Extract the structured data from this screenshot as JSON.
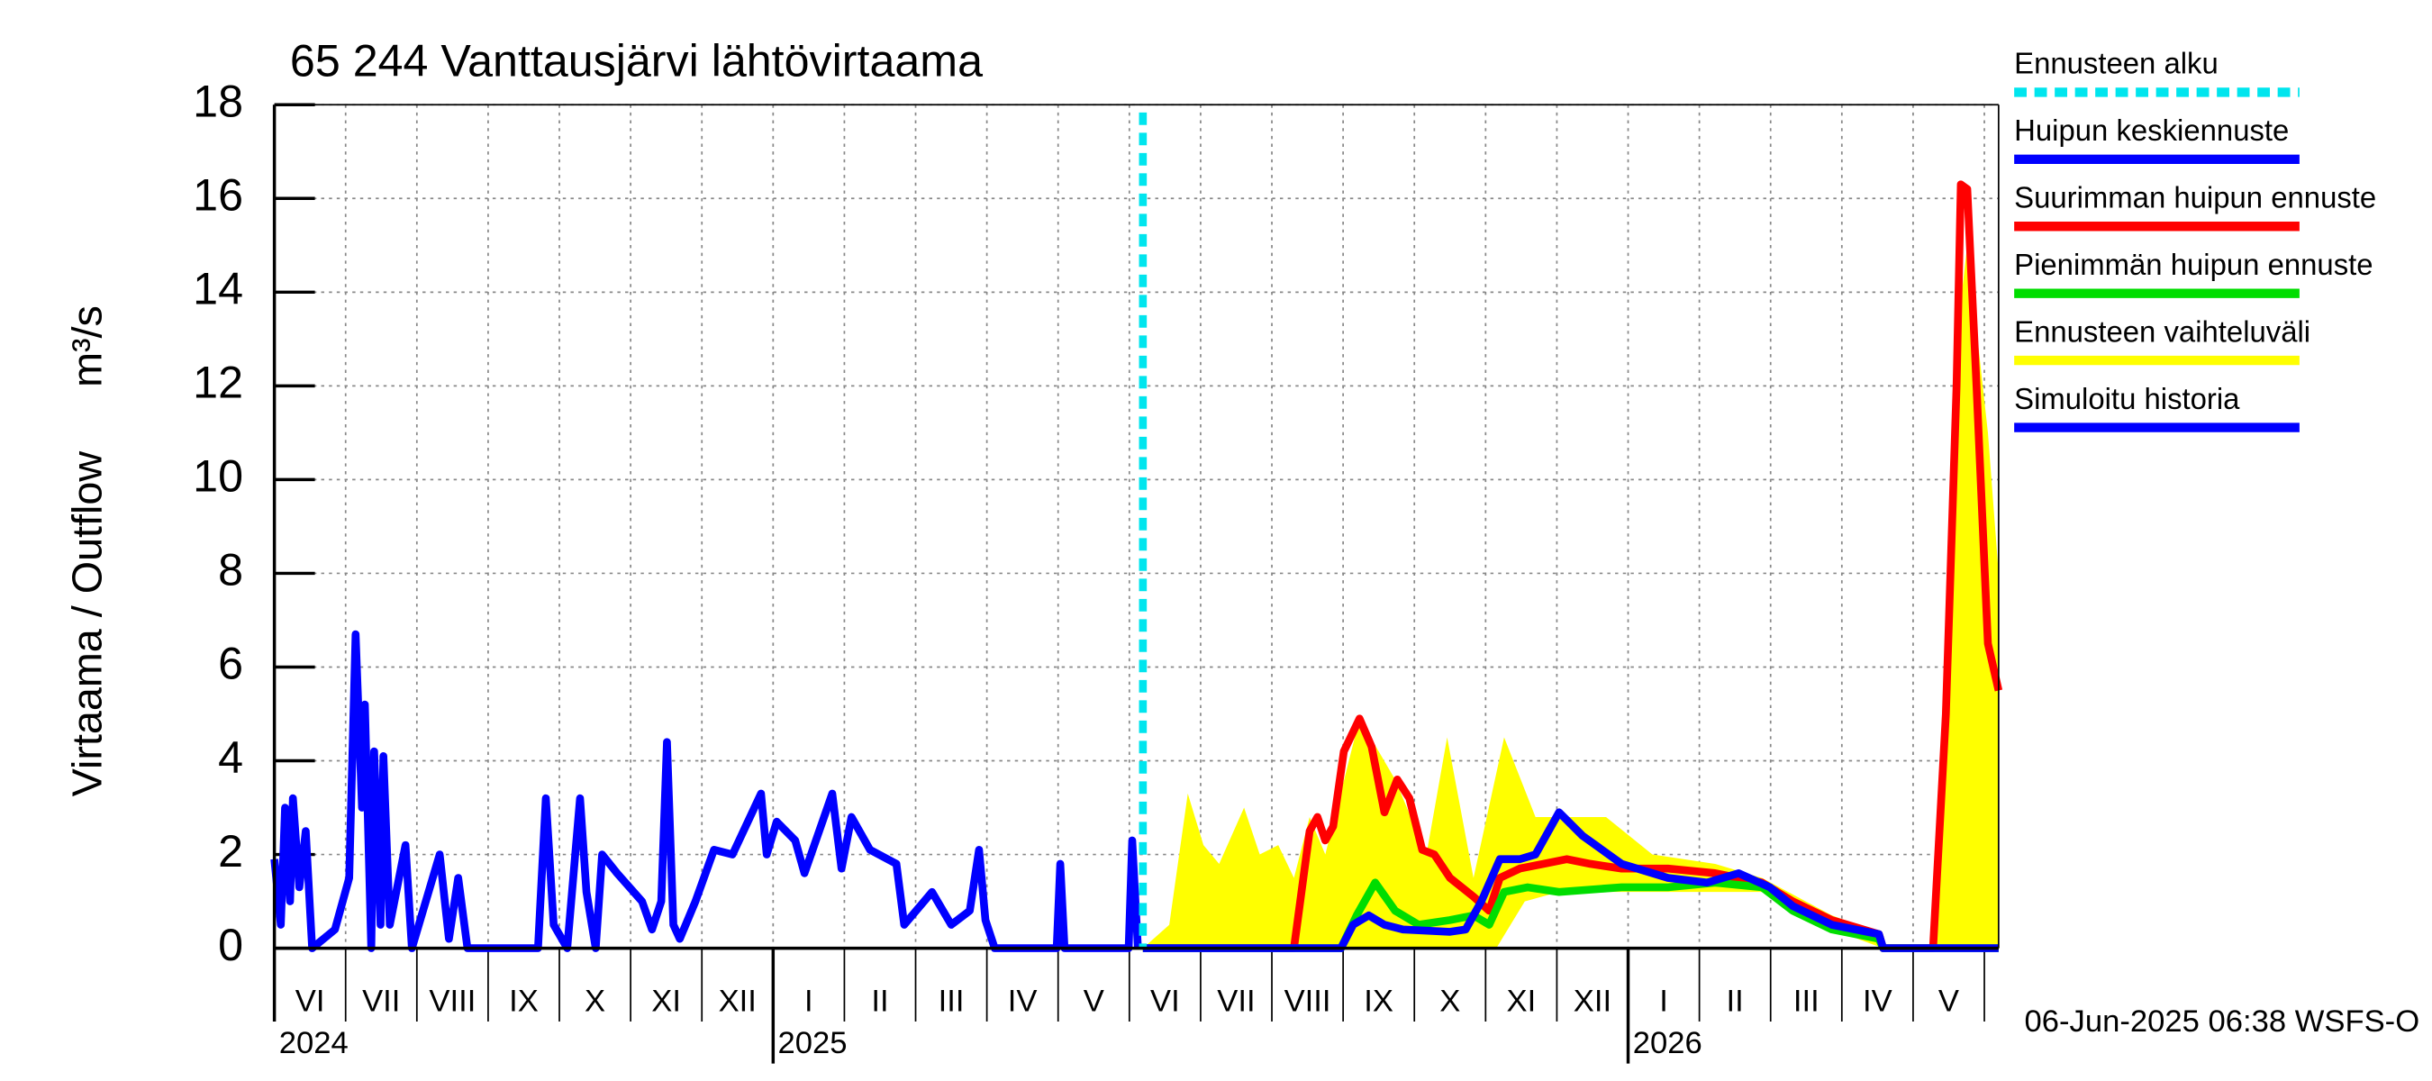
{
  "chart_data": {
    "type": "line",
    "title": "65 244 Vanttausjärvi lähtövirtaama",
    "y_label": "Virtaama / Outflow",
    "y_unit": "m³/s",
    "timestamp": "06-Jun-2025 06:38 WSFS-O",
    "ylim": [
      0,
      18
    ],
    "yticks": [
      0,
      2,
      4,
      6,
      8,
      10,
      12,
      14,
      16,
      18
    ],
    "xlim": [
      0,
      24.2
    ],
    "xticks": [
      0,
      1,
      2,
      3,
      4,
      5,
      6,
      7,
      8,
      9,
      10,
      11,
      12,
      13,
      14,
      15,
      16,
      17,
      18,
      19,
      20,
      21,
      22,
      23,
      24
    ],
    "month_labels": [
      "VI",
      "VII",
      "VIII",
      "IX",
      "X",
      "XI",
      "XII",
      "I",
      "II",
      "III",
      "IV",
      "V",
      "VI",
      "VII",
      "VIII",
      "IX",
      "X",
      "XI",
      "XII",
      "I",
      "II",
      "III",
      "IV",
      "V"
    ],
    "year_labels": [
      {
        "value": 0,
        "label": "2024"
      },
      {
        "value": 7,
        "label": "2025"
      },
      {
        "value": 19,
        "label": "2026"
      }
    ],
    "grid": true,
    "forecast_start": {
      "name": "Ennusteen alku",
      "color": "#00e5ee",
      "x": 12.19
    },
    "band": {
      "name": "Ennusteen vaihteluväli",
      "color": "#ffff00",
      "x_upper": [
        12.19,
        12.56,
        12.82,
        13.04,
        13.26,
        13.61,
        13.83,
        14.09,
        14.31,
        14.53,
        14.75,
        15.23,
        15.73,
        16.17,
        16.46,
        16.83,
        17.26,
        17.7,
        18.03,
        18.69,
        19.34,
        20.22,
        20.88,
        21.86,
        22.58,
        22.63,
        23.28,
        23.61,
        23.76,
        24.05,
        24.2
      ],
      "upper": [
        0,
        0.5,
        3.3,
        2.2,
        1.8,
        3.0,
        2.0,
        2.2,
        1.5,
        2.8,
        2.0,
        4.9,
        3.6,
        2.0,
        4.5,
        1.5,
        4.5,
        2.8,
        2.8,
        2.8,
        2.0,
        1.8,
        1.5,
        0.7,
        0.3,
        0,
        0,
        13,
        15,
        11,
        8
      ],
      "x_lower": [
        12.19,
        17.15,
        17.55,
        18.03,
        19.56,
        20.88,
        21.86,
        22.58,
        24.2
      ],
      "lower": [
        0,
        0,
        1.0,
        1.2,
        1.2,
        1.2,
        0.4,
        0,
        0
      ]
    },
    "series": [
      {
        "name": "Huipun keskiennuste",
        "color": "#0000ff",
        "x": [
          12.19,
          14.97,
          15.14,
          15.36,
          15.58,
          15.84,
          16.5,
          16.72,
          16.94,
          17.2,
          17.48,
          17.7,
          18.03,
          18.36,
          18.91,
          19.56,
          20.11,
          20.55,
          20.99,
          21.31,
          21.86,
          22.52,
          22.58,
          24.2
        ],
        "values": [
          0,
          0,
          0.5,
          0.7,
          0.5,
          0.4,
          0.35,
          0.4,
          1.0,
          1.9,
          1.9,
          2.0,
          2.9,
          2.4,
          1.8,
          1.5,
          1.4,
          1.6,
          1.3,
          0.9,
          0.5,
          0.3,
          0,
          0
        ]
      },
      {
        "name": "Suurimman huipun ennuste",
        "color": "#ff0000",
        "x": [
          12.19,
          14.31,
          14.53,
          14.64,
          14.75,
          14.86,
          15.01,
          15.23,
          15.4,
          15.58,
          15.76,
          15.93,
          16.11,
          16.28,
          16.5,
          16.83,
          17.05,
          17.2,
          17.48,
          17.81,
          18.14,
          18.47,
          18.91,
          19.56,
          20.22,
          20.88,
          21.31,
          21.86,
          22.52,
          22.58,
          23.28,
          23.46,
          23.61,
          23.67,
          23.76,
          23.89,
          24.05,
          24.2
        ],
        "values": [
          0,
          0,
          2.5,
          2.8,
          2.3,
          2.6,
          4.2,
          4.9,
          4.3,
          2.9,
          3.6,
          3.2,
          2.1,
          2.0,
          1.5,
          1.1,
          0.8,
          1.5,
          1.7,
          1.8,
          1.9,
          1.8,
          1.7,
          1.7,
          1.6,
          1.4,
          1.0,
          0.6,
          0.3,
          0,
          0,
          5,
          12,
          16.3,
          16.2,
          12,
          6.5,
          5.5
        ]
      },
      {
        "name": "Pienimmän huipun ennuste",
        "color": "#00dd00",
        "x": [
          12.19,
          14.97,
          15.19,
          15.45,
          15.73,
          16.06,
          16.5,
          16.83,
          17.05,
          17.26,
          17.59,
          18.03,
          18.91,
          19.56,
          20.22,
          20.88,
          21.31,
          21.86,
          22.52,
          22.58,
          24.2
        ],
        "values": [
          0,
          0,
          0.7,
          1.4,
          0.8,
          0.5,
          0.6,
          0.7,
          0.5,
          1.2,
          1.3,
          1.2,
          1.3,
          1.3,
          1.4,
          1.3,
          0.8,
          0.4,
          0.2,
          0,
          0
        ]
      },
      {
        "name": "Simuloitu historia",
        "color": "#0000ff",
        "x": [
          0.0,
          0.09,
          0.15,
          0.22,
          0.26,
          0.35,
          0.44,
          0.53,
          0.85,
          1.05,
          1.14,
          1.23,
          1.27,
          1.36,
          1.4,
          1.49,
          1.53,
          1.62,
          1.84,
          1.93,
          2.32,
          2.45,
          2.58,
          2.71,
          3.06,
          3.7,
          3.81,
          3.92,
          4.11,
          4.29,
          4.38,
          4.51,
          4.6,
          4.81,
          5.16,
          5.3,
          5.43,
          5.51,
          5.6,
          5.69,
          5.91,
          6.17,
          6.43,
          6.83,
          6.91,
          7.05,
          7.31,
          7.44,
          7.83,
          7.96,
          8.1,
          8.36,
          8.73,
          8.84,
          9.23,
          9.5,
          9.76,
          9.89,
          9.98,
          10.11,
          10.98,
          11.03,
          11.09,
          11.99,
          12.04,
          12.12
        ],
        "values": [
          1.9,
          0.5,
          3.0,
          1.0,
          3.2,
          1.3,
          2.5,
          0,
          0.4,
          1.5,
          6.7,
          3.0,
          5.2,
          0,
          4.2,
          0.5,
          4.1,
          0.5,
          2.2,
          0,
          2.0,
          0.2,
          1.5,
          0,
          0,
          0,
          3.2,
          0.5,
          0,
          3.2,
          1.2,
          0,
          2.0,
          1.6,
          1.0,
          0.4,
          1.0,
          4.4,
          0.5,
          0.2,
          1.0,
          2.1,
          2.0,
          3.3,
          2.0,
          2.7,
          2.3,
          1.6,
          3.3,
          1.7,
          2.8,
          2.1,
          1.8,
          0.5,
          1.2,
          0.5,
          0.8,
          2.1,
          0.6,
          0,
          0,
          1.8,
          0,
          0,
          2.3,
          0
        ]
      }
    ]
  }
}
